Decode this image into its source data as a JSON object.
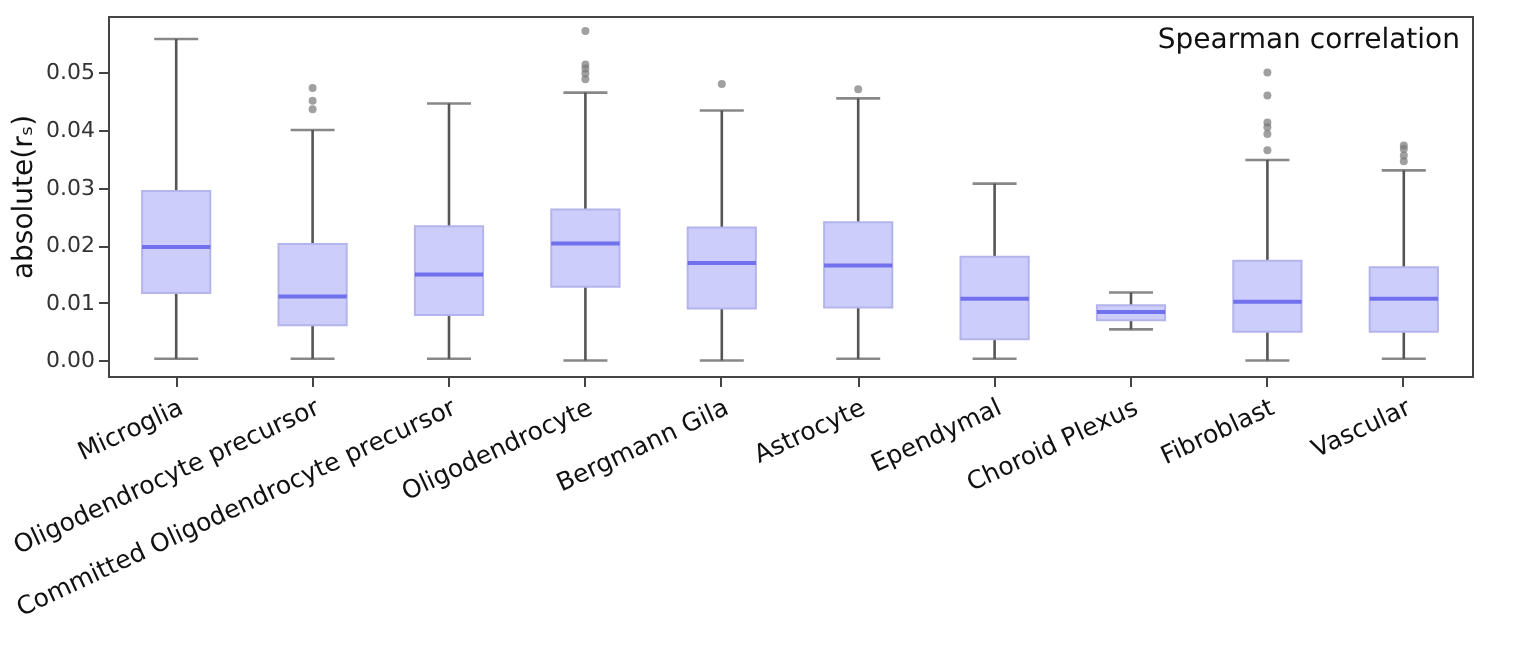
{
  "chart_data": {
    "type": "box",
    "annotations": [
      "Spearman correlation"
    ],
    "ylabel": "absolute(rₛ)",
    "categories": [
      "Microglia",
      "Oligodendrocyte precursor",
      "Committed Oligodendrocyte precursor",
      "Oligodendrocyte",
      "Bergmann Gila",
      "Astrocyte",
      "Ependymal",
      "Choroid Plexus",
      "Fibroblast",
      "Vascular"
    ],
    "boxes": [
      {
        "low": 0.0003,
        "q1": 0.0117,
        "median": 0.0197,
        "q3": 0.0294,
        "high": 0.0558
      },
      {
        "low": 0.0003,
        "q1": 0.0061,
        "median": 0.0111,
        "q3": 0.0202,
        "high": 0.04,
        "outliers": [
          0.0436,
          0.0451,
          0.0473
        ]
      },
      {
        "low": 0.0003,
        "q1": 0.0079,
        "median": 0.0149,
        "q3": 0.0233,
        "high": 0.0446
      },
      {
        "low": 0.0,
        "q1": 0.0128,
        "median": 0.0203,
        "q3": 0.0262,
        "high": 0.0465,
        "outliers": [
          0.0488,
          0.0498,
          0.0507,
          0.0514,
          0.0572
        ]
      },
      {
        "low": 0.0,
        "q1": 0.009,
        "median": 0.0169,
        "q3": 0.0231,
        "high": 0.0434,
        "outliers": [
          0.048
        ]
      },
      {
        "low": 0.0003,
        "q1": 0.0092,
        "median": 0.0165,
        "q3": 0.024,
        "high": 0.0455,
        "outliers": [
          0.0471
        ]
      },
      {
        "low": 0.0003,
        "q1": 0.0037,
        "median": 0.0107,
        "q3": 0.018,
        "high": 0.0307
      },
      {
        "low": 0.0054,
        "q1": 0.007,
        "median": 0.0084,
        "q3": 0.0096,
        "high": 0.0118
      },
      {
        "low": 0.0,
        "q1": 0.005,
        "median": 0.0102,
        "q3": 0.0173,
        "high": 0.0348,
        "outliers": [
          0.0365,
          0.0393,
          0.0405,
          0.0413,
          0.046,
          0.05
        ]
      },
      {
        "low": 0.0003,
        "q1": 0.005,
        "median": 0.0107,
        "q3": 0.0162,
        "high": 0.033,
        "outliers": [
          0.0346,
          0.0356,
          0.0367,
          0.0373
        ]
      }
    ],
    "ylim": [
      -0.0027,
      0.0598
    ],
    "yticks": [
      {
        "value": 0,
        "label": "0.00"
      },
      {
        "value": 0.01,
        "label": "0.01"
      },
      {
        "value": 0.02,
        "label": "0.02"
      },
      {
        "value": 0.03,
        "label": "0.03"
      },
      {
        "value": 0.04,
        "label": "0.04"
      },
      {
        "value": 0.05,
        "label": "0.05"
      }
    ],
    "grid": false
  }
}
